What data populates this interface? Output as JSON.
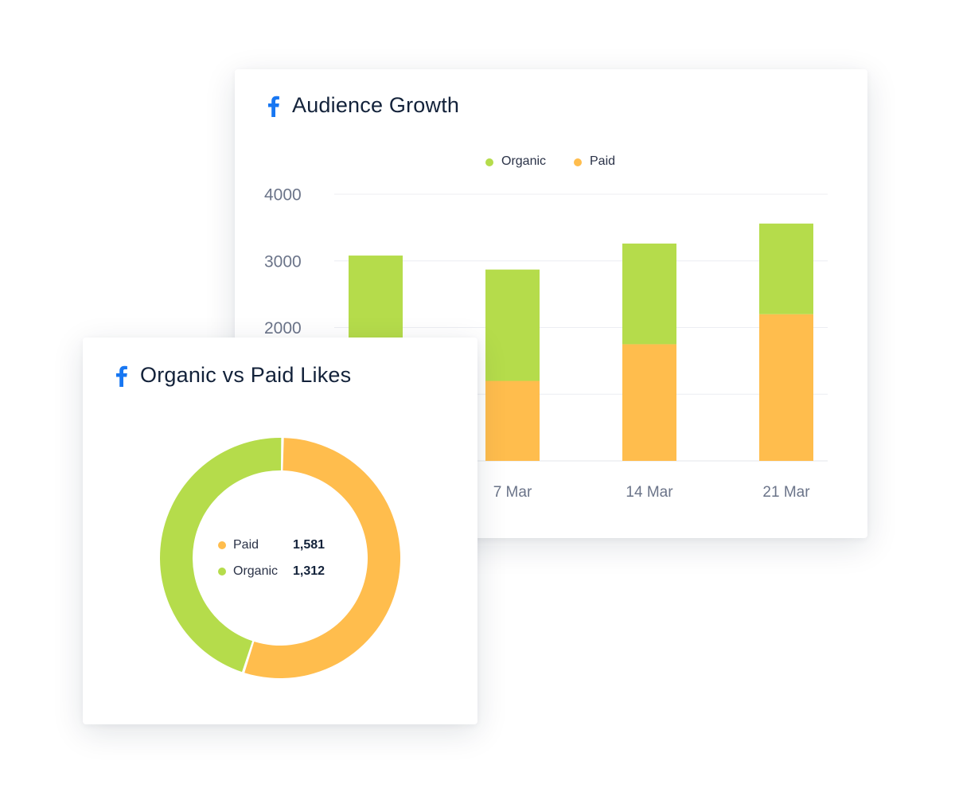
{
  "cards": {
    "audience_growth": {
      "title": "Audience Growth",
      "icon": "facebook-icon"
    },
    "likes": {
      "title": "Organic vs Paid Likes",
      "icon": "facebook-icon"
    }
  },
  "colors": {
    "organic": "#b5dc4b",
    "paid": "#ffbd4d",
    "brand": "#1877f2"
  },
  "chart_data": [
    {
      "type": "bar",
      "stacked": true,
      "categories": [
        "",
        "7 Mar",
        "14 Mar",
        "21 Mar"
      ],
      "series": [
        {
          "name": "Paid",
          "values": [
            1820,
            1200,
            1750,
            2200
          ]
        },
        {
          "name": "Organic",
          "values": [
            1260,
            1670,
            1510,
            1360
          ]
        }
      ],
      "legend": [
        "Organic",
        "Paid"
      ],
      "legend_position": "top-center",
      "y_ticks": [
        "2000",
        "3000",
        "4000"
      ],
      "ylim": [
        0,
        4000
      ],
      "grid": true
    },
    {
      "type": "pie",
      "donut": true,
      "slices": [
        {
          "label": "Paid",
          "value": 1581,
          "display": "1,581"
        },
        {
          "label": "Organic",
          "value": 1312,
          "display": "1,312"
        }
      ]
    }
  ]
}
